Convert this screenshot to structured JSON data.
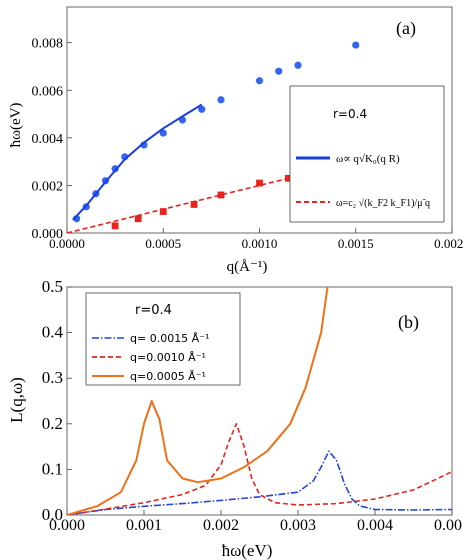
{
  "chart_data": [
    {
      "type": "scatter",
      "panel_label": "(a)",
      "xlabel": "q(Å⁻¹)",
      "ylabel": "ħω(eV)",
      "xlim": [
        0,
        0.002
      ],
      "ylim": [
        0,
        0.0095
      ],
      "xticks": [
        "0.0000",
        "0.0005",
        "0.0010",
        "0.0015",
        "0.0020"
      ],
      "yticks": [
        "0.000",
        "0.002",
        "0.004",
        "0.006",
        "0.008"
      ],
      "legend": {
        "title": "r=0.4",
        "entries": [
          "ω∝ q√K₀(q R)",
          "ω=c₂ √(k_F2 k_F1)/μ̃ q"
        ]
      },
      "series": [
        {
          "marker": "circle",
          "color": "#3366ee",
          "points": [
            [
              5e-05,
              0.0006
            ],
            [
              0.0001,
              0.0011
            ],
            [
              0.00015,
              0.00165
            ],
            [
              0.0002,
              0.0022
            ],
            [
              0.00025,
              0.0027
            ],
            [
              0.0003,
              0.0032
            ],
            [
              0.0004,
              0.0037
            ],
            [
              0.0005,
              0.0042
            ],
            [
              0.0006,
              0.00475
            ],
            [
              0.0007,
              0.0052
            ],
            [
              0.0008,
              0.0056
            ],
            [
              0.001,
              0.0064
            ],
            [
              0.0011,
              0.0068
            ],
            [
              0.0012,
              0.00705
            ],
            [
              0.0015,
              0.0079
            ]
          ]
        },
        {
          "line": "solid",
          "color": "#1a3ee0",
          "points": [
            [
              3e-05,
              0.00055
            ],
            [
              0.0001,
              0.00115
            ],
            [
              0.0002,
              0.00215
            ],
            [
              0.0003,
              0.0031
            ],
            [
              0.0004,
              0.0038
            ],
            [
              0.0005,
              0.0044
            ],
            [
              0.0006,
              0.0049
            ],
            [
              0.0007,
              0.0054
            ]
          ]
        },
        {
          "marker": "square",
          "color": "#e8221c",
          "points": [
            [
              0.00025,
              0.0003
            ],
            [
              0.00037,
              0.0006
            ],
            [
              0.0005,
              0.0009
            ],
            [
              0.00066,
              0.0012
            ],
            [
              0.0008,
              0.0016
            ],
            [
              0.001,
              0.0021
            ],
            [
              0.00115,
              0.0023
            ]
          ]
        },
        {
          "line": "dashed",
          "color": "#e8221c",
          "points": [
            [
              0,
              0
            ],
            [
              0.0012,
              0.0024
            ]
          ]
        }
      ]
    },
    {
      "type": "line",
      "panel_label": "(b)",
      "xlabel": "ħω(eV)",
      "ylabel": "L(q,ω)",
      "xlim": [
        0,
        0.005
      ],
      "ylim": [
        0,
        0.5
      ],
      "xticks": [
        "0.000",
        "0.001",
        "0.002",
        "0.003",
        "0.004",
        "0.005"
      ],
      "yticks": [
        "0.0",
        "0.1",
        "0.2",
        "0.3",
        "0.4",
        "0.5"
      ],
      "legend": {
        "title": "r=0.4",
        "entries": [
          "q= 0.0015 Å⁻¹",
          "q=0.0010 Å⁻¹",
          "q=0.0005 Å⁻¹"
        ]
      },
      "series": [
        {
          "line": "dashdot",
          "color": "#2244dd",
          "points": [
            [
              0,
              0
            ],
            [
              0.0005,
              0.012
            ],
            [
              0.001,
              0.019
            ],
            [
              0.0015,
              0.025
            ],
            [
              0.002,
              0.032
            ],
            [
              0.0025,
              0.04
            ],
            [
              0.003,
              0.05
            ],
            [
              0.0032,
              0.075
            ],
            [
              0.0033,
              0.105
            ],
            [
              0.0034,
              0.14
            ],
            [
              0.0035,
              0.12
            ],
            [
              0.0036,
              0.07
            ],
            [
              0.0037,
              0.035
            ],
            [
              0.0038,
              0.02
            ],
            [
              0.004,
              0.012
            ],
            [
              0.0045,
              0.011
            ],
            [
              0.005,
              0.012
            ]
          ]
        },
        {
          "line": "dashed",
          "color": "#e8221c",
          "points": [
            [
              0,
              0
            ],
            [
              0.0005,
              0.013
            ],
            [
              0.001,
              0.027
            ],
            [
              0.0015,
              0.045
            ],
            [
              0.0018,
              0.065
            ],
            [
              0.002,
              0.11
            ],
            [
              0.0021,
              0.16
            ],
            [
              0.0022,
              0.2
            ],
            [
              0.0023,
              0.15
            ],
            [
              0.0024,
              0.08
            ],
            [
              0.0025,
              0.045
            ],
            [
              0.0027,
              0.027
            ],
            [
              0.003,
              0.022
            ],
            [
              0.0035,
              0.025
            ],
            [
              0.004,
              0.035
            ],
            [
              0.0045,
              0.055
            ],
            [
              0.005,
              0.095
            ]
          ]
        },
        {
          "line": "solid",
          "color": "#f07018",
          "points": [
            [
              0,
              0
            ],
            [
              0.0004,
              0.02
            ],
            [
              0.0007,
              0.05
            ],
            [
              0.0009,
              0.12
            ],
            [
              0.001,
              0.2
            ],
            [
              0.0011,
              0.25
            ],
            [
              0.0012,
              0.21
            ],
            [
              0.0013,
              0.12
            ],
            [
              0.0015,
              0.08
            ],
            [
              0.0017,
              0.072
            ],
            [
              0.002,
              0.08
            ],
            [
              0.0023,
              0.105
            ],
            [
              0.0026,
              0.14
            ],
            [
              0.0029,
              0.2
            ],
            [
              0.0031,
              0.28
            ],
            [
              0.0033,
              0.4
            ],
            [
              0.0034,
              0.52
            ]
          ]
        }
      ]
    }
  ]
}
